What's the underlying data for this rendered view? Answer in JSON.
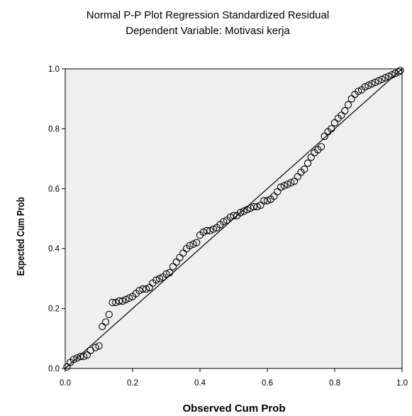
{
  "chart_data": {
    "type": "scatter",
    "title": "Normal P-P Plot Regression Standardized Residual",
    "subtitle": "Dependent Variable: Motivasi kerja",
    "xlabel": "Observed Cum Prob",
    "ylabel": "Expected Cum Prob",
    "xlim": [
      0.0,
      1.0
    ],
    "ylim": [
      0.0,
      1.0
    ],
    "xticks": [
      "0.0",
      "0.2",
      "0.4",
      "0.6",
      "0.8",
      "1.0"
    ],
    "yticks": [
      "0.0",
      "0.2",
      "0.4",
      "0.6",
      "0.8",
      "1.0"
    ],
    "grid": false,
    "reference_line": {
      "from": [
        0.0,
        0.0
      ],
      "to": [
        1.0,
        1.0
      ]
    },
    "series": [
      {
        "x": [
          0.005,
          0.015,
          0.025,
          0.035,
          0.045,
          0.055,
          0.065,
          0.075,
          0.09,
          0.1,
          0.11,
          0.12,
          0.13,
          0.14,
          0.15,
          0.16,
          0.17,
          0.18,
          0.19,
          0.2,
          0.21,
          0.22,
          0.23,
          0.24,
          0.25,
          0.26,
          0.27,
          0.28,
          0.29,
          0.3,
          0.31,
          0.32,
          0.33,
          0.34,
          0.35,
          0.36,
          0.37,
          0.38,
          0.39,
          0.4,
          0.41,
          0.42,
          0.43,
          0.44,
          0.45,
          0.46,
          0.47,
          0.48,
          0.49,
          0.5,
          0.51,
          0.52,
          0.53,
          0.54,
          0.55,
          0.56,
          0.57,
          0.58,
          0.59,
          0.6,
          0.61,
          0.62,
          0.63,
          0.64,
          0.65,
          0.66,
          0.67,
          0.68,
          0.69,
          0.7,
          0.71,
          0.72,
          0.73,
          0.74,
          0.75,
          0.76,
          0.77,
          0.78,
          0.79,
          0.8,
          0.81,
          0.82,
          0.83,
          0.84,
          0.85,
          0.86,
          0.87,
          0.88,
          0.89,
          0.9,
          0.91,
          0.92,
          0.93,
          0.94,
          0.95,
          0.96,
          0.97,
          0.98,
          0.99,
          0.995
        ],
        "y": [
          0.005,
          0.02,
          0.03,
          0.035,
          0.04,
          0.04,
          0.045,
          0.06,
          0.07,
          0.075,
          0.14,
          0.155,
          0.18,
          0.22,
          0.22,
          0.225,
          0.225,
          0.23,
          0.235,
          0.24,
          0.25,
          0.26,
          0.265,
          0.265,
          0.27,
          0.285,
          0.295,
          0.3,
          0.305,
          0.315,
          0.32,
          0.34,
          0.355,
          0.37,
          0.385,
          0.4,
          0.41,
          0.415,
          0.42,
          0.445,
          0.455,
          0.46,
          0.46,
          0.465,
          0.47,
          0.48,
          0.49,
          0.495,
          0.505,
          0.51,
          0.51,
          0.52,
          0.525,
          0.53,
          0.535,
          0.54,
          0.54,
          0.545,
          0.56,
          0.56,
          0.565,
          0.575,
          0.59,
          0.605,
          0.61,
          0.615,
          0.62,
          0.625,
          0.64,
          0.655,
          0.665,
          0.685,
          0.705,
          0.72,
          0.73,
          0.74,
          0.775,
          0.79,
          0.8,
          0.82,
          0.835,
          0.845,
          0.86,
          0.88,
          0.9,
          0.915,
          0.925,
          0.93,
          0.94,
          0.945,
          0.95,
          0.955,
          0.96,
          0.965,
          0.97,
          0.975,
          0.98,
          0.985,
          0.99,
          0.995
        ]
      }
    ],
    "colors": {
      "plot_background": "#efefef",
      "marker": "#000000",
      "line": "#000000"
    }
  }
}
